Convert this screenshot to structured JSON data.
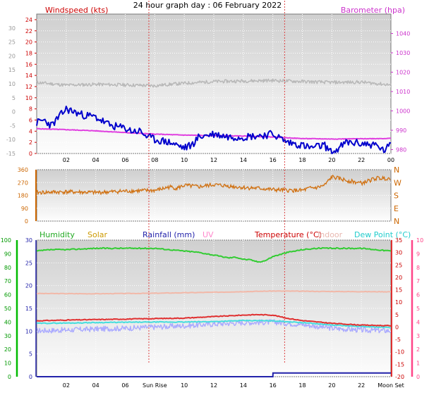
{
  "title": "24 hour graph day : 06 February 2022",
  "time_ticks": [
    "02",
    "04",
    "06",
    "08",
    "10",
    "12",
    "14",
    "16",
    "18",
    "20",
    "22",
    "00"
  ],
  "bottom_ticks": [
    "02",
    "04",
    "06",
    "Sun Rise",
    "10",
    "12",
    "14",
    "16",
    "18",
    "20",
    "22",
    "Moon Set"
  ],
  "colors": {
    "wind_gust": "#ff0000",
    "wind_avg": "#0000cc",
    "barometer": "#e040e0",
    "temp_scale": "#cc3333",
    "direction": "#d07010",
    "humidity": "#33cc33",
    "solar": "#ffb030",
    "uv": "#ff88aa",
    "rainfall": "#2222aa",
    "temperature": "#e03030",
    "indoor": "#f2b8a8",
    "dew_point": "#44dddd",
    "apparent": "#aaaaff",
    "grey_line": "#b8b8b8",
    "left_scale_humidity": "#00bb00",
    "right_scale_pink": "#ff4488"
  },
  "chart_data": [
    {
      "type": "line",
      "panel": "wind-barometer",
      "title": "",
      "labels": {
        "left": "Windspeed (kts)",
        "right": "Barometer (hpa)"
      },
      "x": {
        "unit": "hour",
        "range": [
          0,
          24
        ]
      },
      "axes": {
        "wind_kts": {
          "range": [
            0,
            25
          ],
          "ticks": [
            0,
            2,
            4,
            6,
            8,
            10,
            12,
            14,
            16,
            18,
            20,
            22,
            24
          ]
        },
        "temperature_scale": {
          "range": [
            -15,
            35
          ],
          "ticks": [
            -15,
            -10,
            -5,
            0,
            5,
            10,
            15,
            20,
            25,
            30
          ]
        },
        "barometer_hpa": {
          "range": [
            978,
            1050
          ],
          "ticks": [
            980,
            990,
            1000,
            1010,
            1020,
            1030,
            1040
          ]
        }
      },
      "series": [
        {
          "key": "grey",
          "x": [
            0,
            2,
            4,
            6,
            8,
            9,
            10,
            12,
            14,
            16,
            18,
            20,
            22,
            24
          ],
          "y": [
            10.5,
            9.5,
            9.8,
            9.6,
            9.3,
            9.8,
            10.2,
            10.8,
            11.0,
            11.2,
            10.8,
            10.5,
            10.6,
            9.6
          ]
        },
        {
          "key": "barometer",
          "x": [
            0,
            2,
            4,
            6,
            8,
            10,
            12,
            14,
            16,
            18,
            20,
            22,
            24
          ],
          "y": [
            990.8,
            990.3,
            989.7,
            988.8,
            988.0,
            987.5,
            987.2,
            987.0,
            986.5,
            985.7,
            985.5,
            985.6,
            985.8
          ]
        },
        {
          "key": "wind_avg",
          "x": [
            0,
            0.5,
            1,
            1.5,
            2,
            3,
            4,
            5,
            6,
            6.5,
            7,
            7.5,
            8,
            9,
            10,
            10.5,
            11,
            12,
            13,
            14,
            15,
            16,
            17,
            18,
            18.5,
            19,
            19.5,
            20,
            20.5,
            21,
            22,
            23,
            23.5,
            24
          ],
          "y": [
            5.5,
            6,
            5,
            6.5,
            8,
            7,
            6.5,
            5,
            4.5,
            4,
            4,
            3,
            2.5,
            2,
            1,
            1.5,
            3,
            3.5,
            3,
            3,
            3.2,
            3.5,
            2,
            1.5,
            1,
            1.2,
            1.5,
            0,
            1,
            2,
            1.8,
            1.5,
            0.5,
            1.5
          ]
        },
        {
          "key": "wind_gust",
          "x": [
            0,
            0.5,
            1,
            1.5,
            2,
            2.5,
            3,
            3.5,
            4,
            4.5,
            5,
            5.5,
            6,
            6.5,
            7,
            7.5,
            8,
            8.5,
            9,
            9.5,
            10,
            10.5,
            11,
            11.5,
            12,
            12.5,
            13,
            13.5,
            14,
            14.5,
            15,
            15.5,
            16,
            16.5,
            17,
            17.5,
            18,
            18.5,
            19,
            19.5,
            20,
            20.5,
            21,
            21.5,
            22,
            22.5,
            23,
            23.5,
            24
          ],
          "y": [
            14,
            16,
            13,
            17,
            20,
            15,
            17,
            12,
            14,
            11,
            13,
            10,
            12,
            9,
            11,
            10,
            8,
            9,
            8,
            6,
            9,
            7,
            10,
            8,
            11,
            9,
            10,
            8,
            9,
            11,
            10,
            12,
            13,
            6,
            8,
            5,
            4,
            5,
            3,
            4,
            3,
            2,
            3,
            4,
            3,
            5,
            4,
            3,
            4
          ]
        }
      ]
    },
    {
      "type": "scatter",
      "panel": "wind-direction",
      "title": "",
      "x": {
        "unit": "hour",
        "range": [
          0,
          24
        ]
      },
      "y": {
        "unit": "degrees",
        "range": [
          0,
          360
        ],
        "ticks": [
          0,
          90,
          180,
          270,
          360
        ]
      },
      "compass": [
        "N",
        "W",
        "S",
        "E",
        "N"
      ],
      "series": [
        {
          "key": "direction",
          "x": [
            0,
            2,
            4,
            6,
            8,
            8.5,
            9,
            9.5,
            10,
            11,
            12,
            13,
            14,
            15,
            16,
            17,
            18,
            18.5,
            19,
            19.5,
            20,
            21,
            22,
            23,
            24
          ],
          "y": [
            200,
            205,
            200,
            210,
            215,
            225,
            240,
            230,
            250,
            240,
            255,
            245,
            235,
            230,
            220,
            215,
            215,
            230,
            235,
            250,
            310,
            285,
            265,
            300,
            300
          ]
        }
      ]
    },
    {
      "type": "line",
      "panel": "atmosphere",
      "title": "",
      "legend": [
        "Humidity",
        "Solar",
        "Rainfall (mm)",
        "UV",
        "Temperature (°C)",
        "Indoor",
        "Dew Point (°C)"
      ],
      "x": {
        "unit": "hour",
        "range": [
          0,
          24
        ]
      },
      "axes": {
        "humidity_pct": {
          "range": [
            0,
            100
          ],
          "ticks": [
            0,
            10,
            20,
            30,
            40,
            50,
            60,
            70,
            80,
            90,
            100
          ]
        },
        "rainfall_mm_x10": {
          "range": [
            0,
            30
          ],
          "ticks": [
            0,
            5,
            10,
            15,
            20,
            25,
            30
          ]
        },
        "temperature_c": {
          "range": [
            -20,
            35
          ],
          "ticks": [
            -20,
            -15,
            -10,
            -5,
            0,
            5,
            10,
            15,
            20,
            25,
            30,
            35
          ]
        },
        "uv_index": {
          "range": [
            0,
            10
          ],
          "ticks": [
            0,
            1,
            2,
            3,
            4,
            5,
            6,
            7,
            8,
            9,
            10
          ]
        }
      },
      "sunrise_hour": 7.6,
      "sunset_hour": 16.8,
      "series": [
        {
          "key": "humidity",
          "x": [
            0,
            1,
            2,
            3,
            4,
            5,
            6,
            7,
            8,
            9,
            10,
            11,
            12,
            12.5,
            13,
            13.5,
            14,
            14.5,
            15,
            15.5,
            16,
            17,
            18,
            19,
            20,
            21,
            22,
            23,
            24
          ],
          "y": [
            92,
            93,
            93,
            93.5,
            94,
            94,
            94,
            94,
            94,
            93,
            92,
            91,
            89,
            88,
            87,
            87.5,
            86,
            85.5,
            84,
            85,
            88,
            91,
            93,
            94,
            94,
            94,
            94,
            93,
            92
          ]
        },
        {
          "key": "temperature",
          "x": [
            0,
            2,
            4,
            6,
            8,
            10,
            12,
            14,
            15,
            16,
            17,
            18,
            20,
            22,
            24
          ],
          "y": [
            2.5,
            2.8,
            3.0,
            3.2,
            3.4,
            3.6,
            4.2,
            4.8,
            5.0,
            4.8,
            3.5,
            2.6,
            1.5,
            0.8,
            0.5
          ]
        },
        {
          "key": "indoor",
          "x": [
            0,
            4,
            8,
            12,
            16,
            20,
            24
          ],
          "y": [
            13.5,
            13.4,
            13.6,
            14.0,
            14.5,
            14.3,
            14.2
          ]
        },
        {
          "key": "dew_point",
          "x": [
            0,
            2,
            4,
            6,
            8,
            10,
            12,
            14,
            16,
            18,
            20,
            22,
            24
          ],
          "y": [
            1.5,
            1.6,
            1.8,
            1.9,
            2.0,
            2.0,
            2.2,
            2.6,
            2.5,
            1.8,
            0.8,
            0.2,
            -0.2
          ]
        },
        {
          "key": "apparent",
          "x": [
            0,
            2,
            4,
            6,
            8,
            10,
            12,
            14,
            16,
            18,
            20,
            22,
            24
          ],
          "y": [
            -1.5,
            -1.2,
            -0.8,
            -0.5,
            0.0,
            0.5,
            1.2,
            1.8,
            2.0,
            1.0,
            -0.5,
            -1.2,
            -1.5
          ]
        },
        {
          "key": "rainfall",
          "x": [
            0,
            16,
            16.01,
            24
          ],
          "y": [
            0,
            0,
            0.8,
            0.8
          ]
        },
        {
          "key": "solar",
          "x": [
            7.6,
            8.5,
            9.5,
            10.5,
            11,
            11.5,
            12,
            12.5,
            13,
            13.5,
            14,
            14.5,
            15,
            15.5,
            16.8
          ],
          "y": [
            0,
            0.5,
            1.5,
            2.5,
            6,
            4,
            5,
            3,
            4,
            2,
            1.5,
            1,
            0.8,
            0.4,
            0
          ]
        },
        {
          "key": "uv",
          "x": [
            10.5,
            11,
            11.5,
            12,
            12.5,
            13,
            13.5,
            14,
            14.5,
            15
          ],
          "y": [
            0,
            0.6,
            0.8,
            1.0,
            0.9,
            1.0,
            0.7,
            0.6,
            0.5,
            0
          ]
        }
      ]
    }
  ]
}
